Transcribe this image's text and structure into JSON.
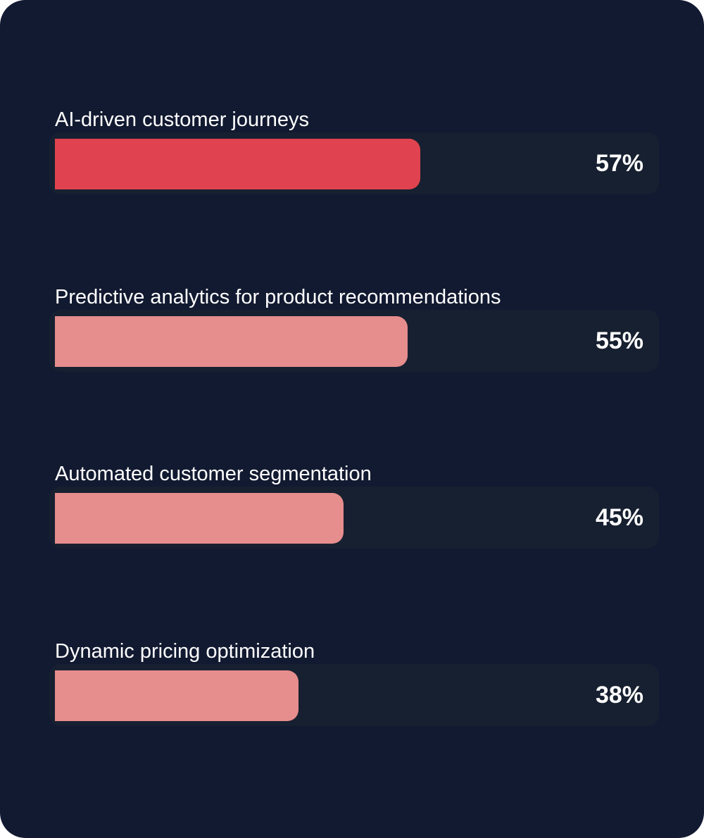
{
  "chart_data": {
    "type": "bar",
    "orientation": "horizontal",
    "categories": [
      "AI-driven customer journeys",
      "Predictive analytics for product recommendations",
      "Automated customer segmentation",
      "Dynamic pricing optimization"
    ],
    "values": [
      57,
      55,
      45,
      38
    ],
    "value_labels": [
      "57%",
      "55%",
      "45%",
      "38%"
    ],
    "unit": "%",
    "highlight_index": 0
  },
  "colors": {
    "background": "#121a31",
    "track": "#172030",
    "highlight_bar": "#e0434f",
    "bar": "#e68d8d",
    "text": "#ffffff"
  }
}
